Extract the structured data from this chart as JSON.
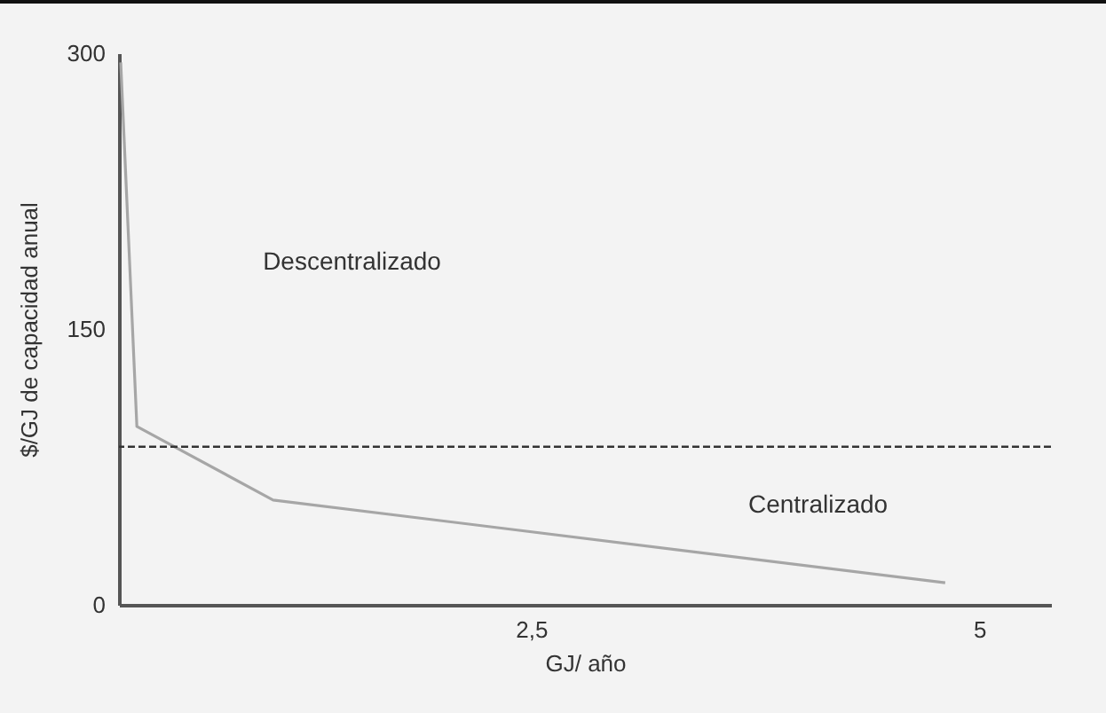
{
  "chart_data": {
    "type": "line",
    "xlabel": "GJ/ año",
    "ylabel": "$/GJ de capacidad anual",
    "x": [
      0.21,
      0.3,
      1.06,
      4.81
    ],
    "series": [
      {
        "color": "#a6a6a6",
        "values": [
          295,
          97,
          57,
          12
        ]
      }
    ],
    "xlim": [
      0.2,
      5.4
    ],
    "xticks": [
      {
        "value": 2.5,
        "label": "2,5"
      },
      5
    ],
    "ylim": [
      0,
      300
    ],
    "yticks": [
      0,
      150,
      300
    ],
    "ref_lines": [
      {
        "axis": "y",
        "value": 86,
        "color": "#333333",
        "line_style": "dashed"
      }
    ],
    "annotations": [
      "Descentralizado",
      "Centralizado"
    ],
    "marker": "none",
    "line_style": "solid"
  }
}
